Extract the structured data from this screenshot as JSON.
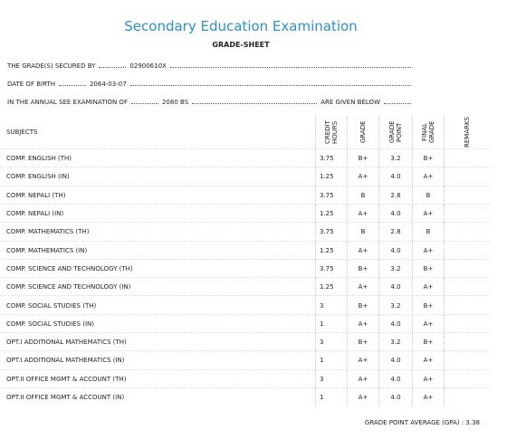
{
  "header": {
    "title": "Secondary Education Examination",
    "subtitle": "GRADE-SHEET"
  },
  "info": [
    {
      "label": "THE GRADE(S) SECURED BY",
      "value": "02900610X"
    },
    {
      "label": "DATE OF BIRTH",
      "value": "2064-03-07"
    },
    {
      "label": "IN THE ANNUAL SEE EXAMINATION OF",
      "value": "2080 BS",
      "suffix": "ARE GIVEN BELOW"
    }
  ],
  "table": {
    "columns": [
      "SUBJECTS",
      "CREDIT HOURS",
      "GRADE",
      "GRADE POINT",
      "FINAL GRADE",
      "REMARKS"
    ],
    "rows": [
      [
        "COMP. ENGLISH (TH)",
        "3.75",
        "B+",
        "3.2",
        "B+"
      ],
      [
        "COMP. ENGLISH (IN)",
        "1.25",
        "A+",
        "4.0",
        "A+"
      ],
      [
        "COMP. NEPALI (TH)",
        "3.75",
        "B",
        "2.8",
        "B"
      ],
      [
        "COMP. NEPALI (IN)",
        "1.25",
        "A+",
        "4.0",
        "A+"
      ],
      [
        "COMP. MATHEMATICS (TH)",
        "3.75",
        "B",
        "2.8",
        "B"
      ],
      [
        "COMP. MATHEMATICS (IN)",
        "1.25",
        "A+",
        "4.0",
        "A+"
      ],
      [
        "COMP. SCIENCE AND TECHNOLOGY (TH)",
        "3.75",
        "B+",
        "3.2",
        "B+"
      ],
      [
        "COMP. SCIENCE AND TECHNOLOGY (IN)",
        "1.25",
        "A+",
        "4.0",
        "A+"
      ],
      [
        "COMP. SOCIAL STUDIES (TH)",
        "3",
        "B+",
        "3.2",
        "B+"
      ],
      [
        "COMP. SOCIAL STUDIES (IN)",
        "1",
        "A+",
        "4.0",
        "A+"
      ],
      [
        "OPT.I ADDITIONAL MATHEMATICS (TH)",
        "3",
        "B+",
        "3.2",
        "B+"
      ],
      [
        "OPT.I ADDITIONAL MATHEMATICS (IN)",
        "1",
        "A+",
        "4.0",
        "A+"
      ],
      [
        "OPT.II OFFICE MGMT & ACCOUNT (TH)",
        "3",
        "A+",
        "4.0",
        "A+"
      ],
      [
        "OPT.II OFFICE MGMT & ACCOUNT (IN)",
        "1",
        "A+",
        "4.0",
        "A+"
      ]
    ]
  },
  "gpa": {
    "label": "GRADE POINT AVERAGE (GPA) :",
    "value": "3.38"
  }
}
